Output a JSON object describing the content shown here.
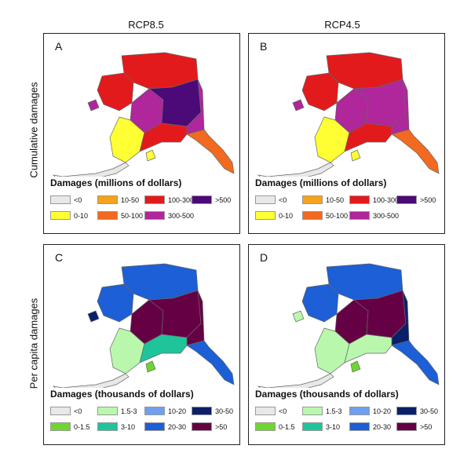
{
  "columns": {
    "left": "RCP8.5",
    "right": "RCP4.5"
  },
  "rows": {
    "top": "Cumulative damages",
    "bottom": "Per capita damages"
  },
  "legend_cumulative": {
    "title": "Damages (millions of dollars)",
    "items": [
      {
        "label": "<0",
        "color": "#e8e8e8"
      },
      {
        "label": "0-10",
        "color": "#ffff33"
      },
      {
        "label": "10-50",
        "color": "#f5a31a"
      },
      {
        "label": "50-100",
        "color": "#f26a1f"
      },
      {
        "label": "100-300",
        "color": "#e31a1c"
      },
      {
        "label": "300-500",
        "color": "#b0269b"
      },
      {
        "label": ">500",
        "color": "#4b0a78"
      }
    ]
  },
  "legend_percapita": {
    "title": "Damages (thousands of dollars)",
    "items": [
      {
        "label": "<0",
        "color": "#e8e8e8"
      },
      {
        "label": "0-1.5",
        "color": "#6fd630"
      },
      {
        "label": "1.5-3",
        "color": "#b9f7ad"
      },
      {
        "label": "3-10",
        "color": "#20c49a"
      },
      {
        "label": "10-20",
        "color": "#6f9ff0"
      },
      {
        "label": "20-30",
        "color": "#1c5fd6"
      },
      {
        "label": "30-50",
        "color": "#0a1f6b"
      },
      {
        "label": ">50",
        "color": "#660044"
      }
    ]
  },
  "panels": [
    {
      "letter": "A",
      "scheme": "cumulative",
      "regions": {
        "north": "#e31a1c",
        "northwest": "#e31a1c",
        "interior_w": "#b0269b",
        "interior_c": "#4b0a78",
        "interior_e": "#b0269b",
        "southwest": "#ffff33",
        "southcentral": "#e31a1c",
        "kodiak": "#ffff33",
        "southeast": "#f26a1f",
        "chain": "#e8e8e8",
        "seward": "#b0269b"
      }
    },
    {
      "letter": "B",
      "scheme": "cumulative",
      "regions": {
        "north": "#e31a1c",
        "northwest": "#e31a1c",
        "interior_w": "#b0269b",
        "interior_c": "#b0269b",
        "interior_e": "#b0269b",
        "southwest": "#ffff33",
        "southcentral": "#e31a1c",
        "kodiak": "#ffff33",
        "southeast": "#f26a1f",
        "chain": "#e8e8e8",
        "seward": "#b0269b"
      }
    },
    {
      "letter": "C",
      "scheme": "percapita",
      "regions": {
        "north": "#1c5fd6",
        "northwest": "#1c5fd6",
        "interior_w": "#660044",
        "interior_c": "#660044",
        "interior_e": "#660044",
        "southwest": "#b9f7ad",
        "southcentral": "#20c49a",
        "kodiak": "#6fd630",
        "southeast": "#1c5fd6",
        "chain": "#e8e8e8",
        "seward": "#0a1f6b"
      }
    },
    {
      "letter": "D",
      "scheme": "percapita",
      "regions": {
        "north": "#1c5fd6",
        "northwest": "#1c5fd6",
        "interior_w": "#660044",
        "interior_c": "#660044",
        "interior_e": "#0a1f6b",
        "southwest": "#b9f7ad",
        "southcentral": "#b9f7ad",
        "kodiak": "#6fd630",
        "southeast": "#1c5fd6",
        "chain": "#e8e8e8",
        "seward": "#b9f7ad"
      }
    }
  ]
}
